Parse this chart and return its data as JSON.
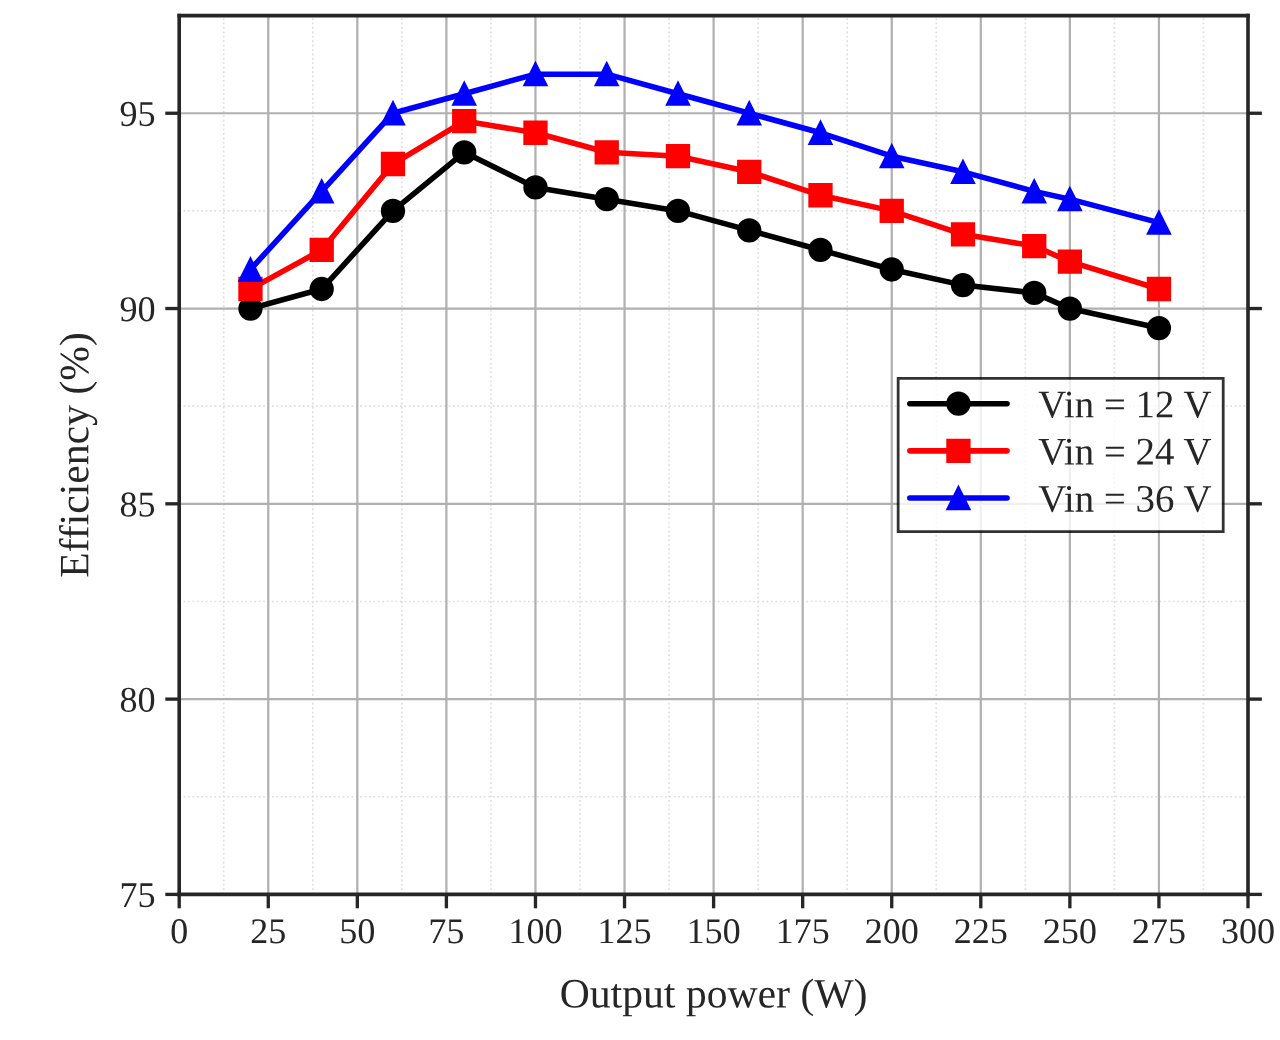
{
  "chart_data": {
    "type": "line",
    "xlabel": "Output power (W)",
    "ylabel": "Efficiency (%)",
    "x": [
      20,
      40,
      60,
      80,
      100,
      120,
      140,
      160,
      180,
      200,
      220,
      240,
      250,
      275
    ],
    "series": [
      {
        "name": "Vin = 12 V",
        "color": "#000000",
        "marker": "circle",
        "values": [
          90,
          90.5,
          92.5,
          94,
          93.1,
          92.8,
          92.5,
          92,
          91.5,
          91,
          90.6,
          90.4,
          90,
          89.5
        ]
      },
      {
        "name": "Vin = 24 V",
        "color": "#ff0000",
        "marker": "square",
        "values": [
          90.5,
          91.5,
          93.7,
          94.8,
          94.5,
          94.0,
          93.9,
          93.5,
          92.9,
          92.5,
          91.9,
          91.6,
          91.2,
          90.5
        ]
      },
      {
        "name": "Vin = 36 V",
        "color": "#0000ff",
        "marker": "triangle",
        "values": [
          91,
          93,
          95,
          95.5,
          96,
          96,
          95.5,
          95,
          94.5,
          93.9,
          93.5,
          93,
          92.8,
          92.2
        ]
      }
    ],
    "xlim": [
      0,
      300
    ],
    "xticks": [
      0,
      25,
      50,
      75,
      100,
      125,
      150,
      175,
      200,
      225,
      250,
      275,
      300
    ],
    "ylim": [
      75,
      97.5
    ],
    "yticks": [
      75,
      80,
      85,
      90,
      95
    ],
    "grid": true,
    "legend": "right",
    "line_style": "solid"
  }
}
